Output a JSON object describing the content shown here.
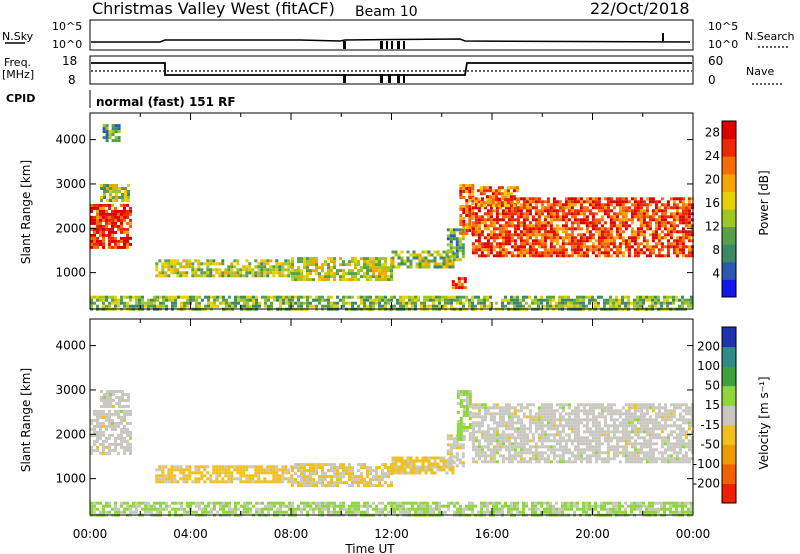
{
  "header": {
    "title": "Christmas Valley West (fitACF)",
    "beam": "Beam 10",
    "date": "22/Oct/2018"
  },
  "noise_panel": {
    "left_label": "N.Sky",
    "left_ticks": [
      "10^5",
      "10^0"
    ],
    "right_label": "N.Search",
    "right_ticks": [
      "10^5",
      "10^0"
    ]
  },
  "freq_panel": {
    "left_label_line1": "Freq.",
    "left_label_line2": "[MHz]",
    "left_ticks": [
      "18",
      "8"
    ],
    "right_label": "Nave",
    "right_ticks": [
      "60",
      "0"
    ]
  },
  "cpid_panel": {
    "label": "CPID",
    "text": "normal (fast) 151 RF"
  },
  "time_axis": {
    "label": "Time UT",
    "ticks": [
      "00:00",
      "04:00",
      "08:00",
      "12:00",
      "16:00",
      "20:00",
      "00:00"
    ],
    "range_hours": [
      0,
      24
    ]
  },
  "chart_data": [
    {
      "type": "heatmap",
      "title": "",
      "xlabel": "",
      "ylabel": "Slant Range [km]",
      "yticks": [
        "1000",
        "2000",
        "3000",
        "4000"
      ],
      "ylim": [
        180,
        4600
      ],
      "colorbar_label": "Power [dB]",
      "colorbar_ticks": [
        "4",
        "8",
        "12",
        "16",
        "20",
        "24",
        "28"
      ],
      "colorbar_range": [
        0,
        30
      ],
      "colors": [
        "#1515ee",
        "#2a5ab0",
        "#3a8a6a",
        "#5a9e4a",
        "#9ec820",
        "#e8d000",
        "#f6a500",
        "#f56c00",
        "#ee2800",
        "#dd0000"
      ],
      "regions": [
        {
          "t": [
            0.0,
            1.6
          ],
          "r": [
            1550,
            2550
          ],
          "v": 26
        },
        {
          "t": [
            0.4,
            1.5
          ],
          "r": [
            2600,
            3000
          ],
          "v": 14
        },
        {
          "t": [
            0.5,
            1.2
          ],
          "r": [
            4000,
            4350
          ],
          "v": 10
        },
        {
          "t": [
            2.6,
            8.0
          ],
          "r": [
            900,
            1300
          ],
          "v": 14
        },
        {
          "t": [
            8.0,
            12.0
          ],
          "r": [
            850,
            1350
          ],
          "v": 15
        },
        {
          "t": [
            12.0,
            14.4
          ],
          "r": [
            1100,
            1500
          ],
          "v": 13
        },
        {
          "t": [
            14.2,
            14.9
          ],
          "r": [
            1300,
            2000
          ],
          "v": 10
        },
        {
          "t": [
            14.4,
            14.9
          ],
          "r": [
            650,
            900
          ],
          "v": 24
        },
        {
          "t": [
            14.7,
            15.2
          ],
          "r": [
            1900,
            3000
          ],
          "v": 23
        },
        {
          "t": [
            15.2,
            24.0
          ],
          "r": [
            1400,
            2700
          ],
          "v": 25
        },
        {
          "t": [
            15.4,
            17.0
          ],
          "r": [
            2500,
            2950
          ],
          "v": 22
        },
        {
          "t": [
            0.0,
            24.0
          ],
          "r": [
            180,
            480
          ],
          "v": 12
        }
      ]
    },
    {
      "type": "heatmap",
      "title": "",
      "xlabel": "Time UT",
      "ylabel": "Slant Range [km]",
      "yticks": [
        "1000",
        "2000",
        "3000",
        "4000"
      ],
      "ylim": [
        180,
        4600
      ],
      "colorbar_label": "Velocity [m s⁻¹]",
      "colorbar_ticks": [
        "200",
        "100",
        "50",
        "15",
        "-15",
        "-50",
        "-100",
        "-200"
      ],
      "colorbar_range": [
        -250,
        250
      ],
      "colors": [
        "#2030b0",
        "#2f8a8a",
        "#3ca23c",
        "#8ed63c",
        "#c8c8c0",
        "#f0c020",
        "#f09a00",
        "#f06000",
        "#ee2000"
      ],
      "regions": [
        {
          "t": [
            0.0,
            1.6
          ],
          "r": [
            1550,
            2550
          ],
          "v": 0
        },
        {
          "t": [
            0.4,
            1.5
          ],
          "r": [
            2600,
            3000
          ],
          "v": 0
        },
        {
          "t": [
            2.6,
            8.0
          ],
          "r": [
            900,
            1300
          ],
          "v": -45
        },
        {
          "t": [
            8.0,
            12.0
          ],
          "r": [
            850,
            1350
          ],
          "v": -30
        },
        {
          "t": [
            12.0,
            14.4
          ],
          "r": [
            1100,
            1500
          ],
          "v": -40
        },
        {
          "t": [
            14.2,
            14.9
          ],
          "r": [
            1300,
            2000
          ],
          "v": -10
        },
        {
          "t": [
            14.6,
            15.1
          ],
          "r": [
            1900,
            3000
          ],
          "v": 40
        },
        {
          "t": [
            15.2,
            24.0
          ],
          "r": [
            1400,
            2700
          ],
          "v": 0
        },
        {
          "t": [
            0.0,
            24.0
          ],
          "r": [
            180,
            480
          ],
          "v": 35
        }
      ]
    }
  ]
}
